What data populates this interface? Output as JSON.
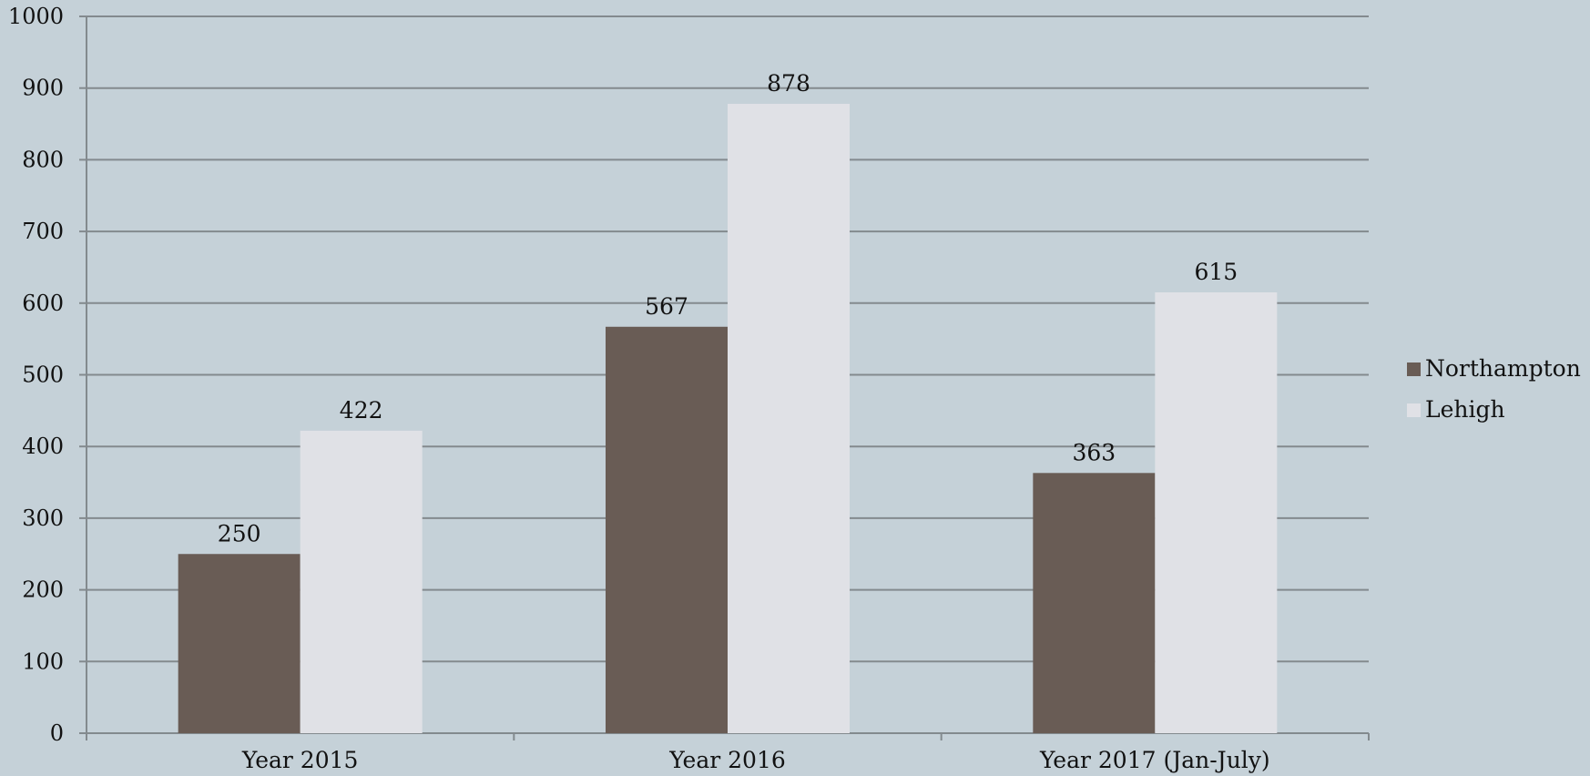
{
  "chart_data": {
    "type": "bar",
    "title": "",
    "xlabel": "",
    "ylabel": "",
    "categories": [
      "Year 2015",
      "Year 2016",
      "Year 2017 (Jan-July)"
    ],
    "series": [
      {
        "name": "Northampton",
        "values": [
          250,
          567,
          363
        ],
        "color": "#695c55"
      },
      {
        "name": "Lehigh",
        "values": [
          422,
          878,
          615
        ],
        "color": "#e0e1e6"
      }
    ],
    "ylim": [
      0,
      1000
    ],
    "yticks": [
      0,
      100,
      200,
      300,
      400,
      500,
      600,
      700,
      800,
      900,
      1000
    ],
    "grid": true,
    "data_labels": true,
    "legend_position": "right",
    "background": "#c5d1d8",
    "grid_color": "#838a8e"
  }
}
